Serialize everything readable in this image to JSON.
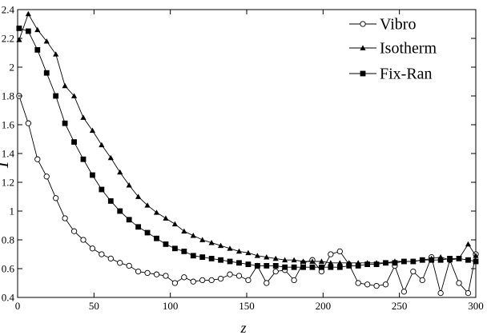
{
  "chart_data": {
    "type": "line",
    "title": "",
    "xlabel": "z",
    "ylabel": "T",
    "xlim": [
      0,
      300
    ],
    "ylim": [
      0.4,
      2.4
    ],
    "xticks": [
      0,
      50,
      100,
      150,
      200,
      250,
      300
    ],
    "xtick_labels": [
      "0",
      "50",
      "100",
      "150",
      "200",
      "250",
      "300"
    ],
    "yticks": [
      0.4,
      0.6,
      0.8,
      1.0,
      1.2,
      1.4,
      1.6,
      1.8,
      2.0,
      2.2,
      2.4
    ],
    "ytick_labels": [
      "0.4",
      "0.6",
      "0.8",
      "1",
      "1.2",
      "1.4",
      "1.6",
      "1.8",
      "2",
      "2.2",
      "2.4"
    ],
    "grid": false,
    "legend_position": "top-right",
    "series": [
      {
        "name": "Vibro",
        "marker": "open-circle",
        "color": "#000000",
        "points": [
          [
            1,
            1.8
          ],
          [
            7,
            1.61
          ],
          [
            13,
            1.36
          ],
          [
            19,
            1.24
          ],
          [
            25,
            1.09
          ],
          [
            31,
            0.95
          ],
          [
            37,
            0.86
          ],
          [
            43,
            0.8
          ],
          [
            49,
            0.74
          ],
          [
            55,
            0.7
          ],
          [
            61,
            0.67
          ],
          [
            67,
            0.64
          ],
          [
            73,
            0.62
          ],
          [
            79,
            0.58
          ],
          [
            85,
            0.57
          ],
          [
            91,
            0.56
          ],
          [
            97,
            0.55
          ],
          [
            103,
            0.5
          ],
          [
            109,
            0.54
          ],
          [
            115,
            0.51
          ],
          [
            121,
            0.52
          ],
          [
            127,
            0.52
          ],
          [
            133,
            0.53
          ],
          [
            139,
            0.56
          ],
          [
            145,
            0.55
          ],
          [
            151,
            0.52
          ],
          [
            157,
            0.62
          ],
          [
            163,
            0.5
          ],
          [
            169,
            0.58
          ],
          [
            175,
            0.59
          ],
          [
            181,
            0.52
          ],
          [
            187,
            0.64
          ],
          [
            193,
            0.66
          ],
          [
            199,
            0.58
          ],
          [
            205,
            0.7
          ],
          [
            211,
            0.72
          ],
          [
            217,
            0.63
          ],
          [
            223,
            0.5
          ],
          [
            229,
            0.49
          ],
          [
            235,
            0.48
          ],
          [
            241,
            0.49
          ],
          [
            247,
            0.62
          ],
          [
            253,
            0.44
          ],
          [
            259,
            0.58
          ],
          [
            265,
            0.52
          ],
          [
            271,
            0.68
          ],
          [
            277,
            0.43
          ],
          [
            283,
            0.66
          ],
          [
            289,
            0.5
          ],
          [
            295,
            0.43
          ],
          [
            300,
            0.7
          ]
        ]
      },
      {
        "name": "Isotherm",
        "marker": "filled-triangle",
        "color": "#000000",
        "points": [
          [
            1,
            2.19
          ],
          [
            7,
            2.37
          ],
          [
            13,
            2.26
          ],
          [
            19,
            2.18
          ],
          [
            25,
            2.09
          ],
          [
            31,
            1.87
          ],
          [
            37,
            1.8
          ],
          [
            43,
            1.65
          ],
          [
            49,
            1.56
          ],
          [
            55,
            1.46
          ],
          [
            61,
            1.37
          ],
          [
            67,
            1.27
          ],
          [
            73,
            1.18
          ],
          [
            79,
            1.1
          ],
          [
            85,
            1.04
          ],
          [
            91,
            0.99
          ],
          [
            97,
            0.95
          ],
          [
            103,
            0.91
          ],
          [
            109,
            0.86
          ],
          [
            115,
            0.83
          ],
          [
            121,
            0.8
          ],
          [
            127,
            0.78
          ],
          [
            133,
            0.76
          ],
          [
            139,
            0.74
          ],
          [
            145,
            0.72
          ],
          [
            151,
            0.71
          ],
          [
            157,
            0.69
          ],
          [
            163,
            0.68
          ],
          [
            169,
            0.67
          ],
          [
            175,
            0.66
          ],
          [
            181,
            0.66
          ],
          [
            187,
            0.65
          ],
          [
            193,
            0.65
          ],
          [
            199,
            0.65
          ],
          [
            205,
            0.64
          ],
          [
            211,
            0.64
          ],
          [
            217,
            0.64
          ],
          [
            223,
            0.64
          ],
          [
            229,
            0.64
          ],
          [
            235,
            0.64
          ],
          [
            241,
            0.64
          ],
          [
            247,
            0.65
          ],
          [
            253,
            0.65
          ],
          [
            259,
            0.65
          ],
          [
            265,
            0.66
          ],
          [
            271,
            0.67
          ],
          [
            277,
            0.68
          ],
          [
            283,
            0.66
          ],
          [
            289,
            0.67
          ],
          [
            295,
            0.77
          ],
          [
            300,
            0.69
          ]
        ]
      },
      {
        "name": "Fix-Ran",
        "marker": "filled-square",
        "color": "#000000",
        "points": [
          [
            1,
            2.27
          ],
          [
            7,
            2.25
          ],
          [
            13,
            2.12
          ],
          [
            19,
            1.96
          ],
          [
            25,
            1.8
          ],
          [
            31,
            1.61
          ],
          [
            37,
            1.48
          ],
          [
            43,
            1.36
          ],
          [
            49,
            1.25
          ],
          [
            55,
            1.15
          ],
          [
            61,
            1.07
          ],
          [
            67,
            1.0
          ],
          [
            73,
            0.94
          ],
          [
            79,
            0.89
          ],
          [
            85,
            0.85
          ],
          [
            91,
            0.81
          ],
          [
            97,
            0.77
          ],
          [
            103,
            0.74
          ],
          [
            109,
            0.72
          ],
          [
            115,
            0.69
          ],
          [
            121,
            0.68
          ],
          [
            127,
            0.67
          ],
          [
            133,
            0.66
          ],
          [
            139,
            0.65
          ],
          [
            145,
            0.64
          ],
          [
            151,
            0.63
          ],
          [
            157,
            0.62
          ],
          [
            163,
            0.62
          ],
          [
            169,
            0.62
          ],
          [
            175,
            0.61
          ],
          [
            181,
            0.61
          ],
          [
            187,
            0.61
          ],
          [
            193,
            0.61
          ],
          [
            199,
            0.61
          ],
          [
            205,
            0.61
          ],
          [
            211,
            0.61
          ],
          [
            217,
            0.62
          ],
          [
            223,
            0.62
          ],
          [
            229,
            0.63
          ],
          [
            235,
            0.63
          ],
          [
            241,
            0.64
          ],
          [
            247,
            0.64
          ],
          [
            253,
            0.65
          ],
          [
            259,
            0.65
          ],
          [
            265,
            0.66
          ],
          [
            271,
            0.66
          ],
          [
            277,
            0.66
          ],
          [
            283,
            0.67
          ],
          [
            289,
            0.67
          ],
          [
            295,
            0.66
          ],
          [
            300,
            0.65
          ]
        ]
      }
    ]
  }
}
